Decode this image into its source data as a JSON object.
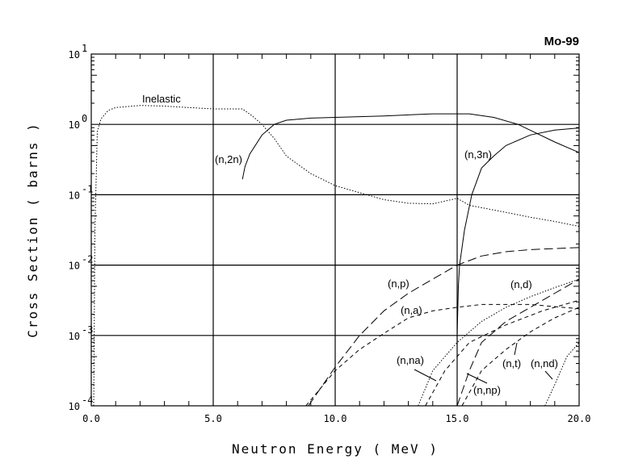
{
  "chart_data": {
    "type": "line",
    "title": "Mo-99",
    "xlabel": "Neutron Energy ( MeV )",
    "ylabel": "Cross Section ( barns )",
    "xlim": [
      0,
      20
    ],
    "ylim_log10": [
      -4,
      1
    ],
    "yscale": "log",
    "grid": true,
    "x_ticks": [
      "0.0",
      "5.0",
      "10.0",
      "15.0",
      "20.0"
    ],
    "y_ticks": [
      {
        "base": "10",
        "exp": "1"
      },
      {
        "base": "10",
        "exp": "0"
      },
      {
        "base": "10",
        "exp": "-1"
      },
      {
        "base": "10",
        "exp": "-2"
      },
      {
        "base": "10",
        "exp": "-3"
      },
      {
        "base": "10",
        "exp": "-4"
      }
    ],
    "series": [
      {
        "name": "Inelastic",
        "style": "dotted",
        "x": [
          0.1,
          0.15,
          0.25,
          0.4,
          0.7,
          1.0,
          2.0,
          3.0,
          4.0,
          5.0,
          6.2,
          6.6,
          7.0,
          7.5,
          8.0,
          9.0,
          10.0,
          11.0,
          12.0,
          13.0,
          14.0,
          15.0,
          15.5,
          17.0,
          18.0,
          19.0,
          20.0
        ],
        "log10_values": [
          -4,
          -1.5,
          -0.1,
          0.08,
          0.2,
          0.24,
          0.27,
          0.26,
          0.24,
          0.22,
          0.22,
          0.12,
          0.0,
          -0.2,
          -0.45,
          -0.7,
          -0.87,
          -0.97,
          -1.07,
          -1.12,
          -1.13,
          -1.05,
          -1.15,
          -1.25,
          -1.32,
          -1.38,
          -1.45
        ]
      },
      {
        "name": "(n,2n)",
        "style": "solid",
        "x": [
          6.2,
          6.3,
          6.5,
          7.0,
          7.5,
          8.0,
          9.0,
          10.0,
          12.0,
          14.0,
          15.0,
          15.5,
          16.5,
          17.5,
          19.0,
          20.0
        ],
        "log10_values": [
          -0.78,
          -0.6,
          -0.42,
          -0.15,
          0.0,
          0.06,
          0.09,
          0.1,
          0.12,
          0.15,
          0.15,
          0.15,
          0.1,
          0.0,
          -0.25,
          -0.4
        ]
      },
      {
        "name": "(n,3n)",
        "style": "solid",
        "x": [
          15.0,
          15.05,
          15.1,
          15.3,
          15.6,
          16.0,
          16.5,
          17.0,
          18.0,
          19.0,
          20.0
        ],
        "log10_values": [
          -3.0,
          -2.3,
          -2.0,
          -1.5,
          -1.0,
          -0.62,
          -0.45,
          -0.3,
          -0.15,
          -0.08,
          -0.05
        ]
      },
      {
        "name": "(n,p)",
        "style": "longdash",
        "x": [
          8.9,
          10.0,
          11.0,
          12.0,
          13.0,
          14.0,
          15.0,
          16.0,
          17.0,
          18.0,
          20.0
        ],
        "log10_values": [
          -4.0,
          -3.45,
          -3.0,
          -2.65,
          -2.4,
          -2.2,
          -2.0,
          -1.87,
          -1.81,
          -1.78,
          -1.75
        ]
      },
      {
        "name": "(n,a)",
        "style": "dashed",
        "x": [
          8.8,
          10.0,
          11.0,
          12.0,
          13.0,
          14.0,
          15.0,
          16.0,
          18.0,
          20.0
        ],
        "log10_values": [
          -4.0,
          -3.5,
          -3.2,
          -2.97,
          -2.75,
          -2.65,
          -2.6,
          -2.56,
          -2.56,
          -2.62
        ]
      },
      {
        "name": "(n,d)",
        "style": "dotted",
        "x": [
          13.4,
          14.0,
          15.0,
          16.0,
          17.0,
          18.0,
          19.0,
          20.0
        ],
        "log10_values": [
          -4.0,
          -3.5,
          -3.1,
          -2.8,
          -2.6,
          -2.45,
          -2.32,
          -2.2
        ]
      },
      {
        "name": "(n,na)",
        "style": "dashed",
        "x": [
          13.7,
          14.5,
          15.5,
          17.0,
          18.5,
          20.0
        ],
        "log10_values": [
          -4.0,
          -3.5,
          -3.1,
          -2.85,
          -2.65,
          -2.5
        ]
      },
      {
        "name": "(n,np)",
        "style": "longdash",
        "x": [
          15.0,
          15.5,
          16.0,
          17.0,
          18.0,
          19.0,
          20.0
        ],
        "log10_values": [
          -4.0,
          -3.5,
          -3.1,
          -2.8,
          -2.6,
          -2.4,
          -2.2
        ]
      },
      {
        "name": "(n,t)",
        "style": "dashed",
        "x": [
          15.2,
          16.0,
          17.0,
          18.0,
          19.0,
          20.0
        ],
        "log10_values": [
          -4.0,
          -3.5,
          -3.2,
          -2.95,
          -2.75,
          -2.6
        ]
      },
      {
        "name": "(n,nd)",
        "style": "dotted",
        "x": [
          18.6,
          19.0,
          19.5,
          20.0
        ],
        "log10_values": [
          -4.0,
          -3.7,
          -3.3,
          -3.1
        ]
      }
    ]
  }
}
